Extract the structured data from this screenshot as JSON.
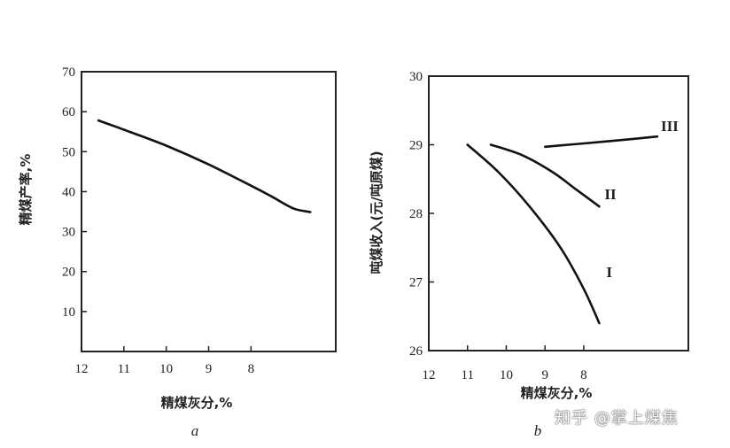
{
  "chart_data": [
    {
      "type": "line",
      "caption": "a",
      "xlabel": "精煤灰分,%",
      "ylabel": "精煤产率,%",
      "x_reversed": true,
      "xlim": [
        12,
        6
      ],
      "ylim": [
        0,
        70
      ],
      "xticks": [
        12,
        11,
        10,
        9,
        8
      ],
      "yticks": [
        10,
        20,
        30,
        40,
        50,
        60,
        70
      ],
      "grid": false,
      "series": [
        {
          "name": "",
          "x": [
            11.6,
            11.0,
            10.0,
            9.0,
            8.0,
            7.5,
            7.0,
            6.6
          ],
          "y": [
            57.8,
            55.5,
            51.5,
            46.8,
            41.5,
            38.7,
            35.8,
            34.9
          ]
        }
      ]
    },
    {
      "type": "line",
      "caption": "b",
      "xlabel": "精煤灰分,%",
      "ylabel": "吨煤收入(元/吨原煤)",
      "x_reversed": true,
      "xlim": [
        12,
        5.3
      ],
      "ylim": [
        26,
        30
      ],
      "xticks": [
        12,
        11,
        10,
        9,
        8
      ],
      "yticks": [
        26,
        27,
        28,
        29,
        30
      ],
      "grid": false,
      "series": [
        {
          "name": "I",
          "x": [
            11.0,
            10.2,
            9.4,
            8.6,
            8.0,
            7.6
          ],
          "y": [
            29.0,
            28.6,
            28.1,
            27.5,
            26.9,
            26.4
          ]
        },
        {
          "name": "II",
          "x": [
            10.4,
            9.6,
            8.8,
            8.2,
            7.6
          ],
          "y": [
            29.0,
            28.85,
            28.6,
            28.35,
            28.1
          ]
        },
        {
          "name": "III",
          "x": [
            9.0,
            8.0,
            7.0,
            6.1
          ],
          "y": [
            28.97,
            29.02,
            29.07,
            29.12
          ]
        }
      ]
    }
  ],
  "watermark": "知乎 @掌上煤焦"
}
